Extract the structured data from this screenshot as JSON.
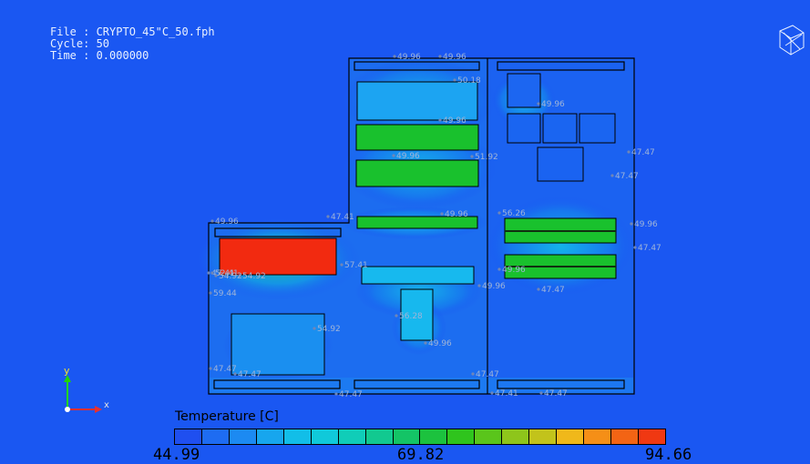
{
  "info": {
    "file_line": "File : CRYPTO_45\"C_50.fph",
    "cycle_line": "Cycle: 50",
    "time_line": "Time : 0.000000"
  },
  "legend": {
    "title": "Temperature [C]",
    "min": "44.99",
    "mid": "69.82",
    "max": "94.66",
    "colors": [
      "#1f4ff0",
      "#1e6cf2",
      "#1c8af2",
      "#17a6ee",
      "#12bee8",
      "#10c9da",
      "#10cdb8",
      "#12c990",
      "#14c466",
      "#1cc23e",
      "#2fc41d",
      "#5ac51b",
      "#8ec51b",
      "#c2c31b",
      "#f0b81a",
      "#f58f17",
      "#f36414",
      "#f03812"
    ]
  },
  "axes": {
    "y": "y",
    "x": "x"
  },
  "probes": [
    {
      "t": "49.96"
    },
    {
      "t": "49.96"
    },
    {
      "t": "50.18"
    },
    {
      "t": "49.96"
    },
    {
      "t": "49.96"
    },
    {
      "t": "51.92"
    },
    {
      "t": "47.47"
    },
    {
      "t": "47.47"
    },
    {
      "t": "47.47"
    },
    {
      "t": "49.96"
    },
    {
      "t": "47.47"
    },
    {
      "t": "49.96"
    },
    {
      "t": "56.26"
    },
    {
      "t": "49.96"
    },
    {
      "t": "57.41"
    },
    {
      "t": "47.41"
    },
    {
      "t": "54.92"
    },
    {
      "t": "49.96"
    },
    {
      "t": "47.47"
    },
    {
      "t": "49.96"
    },
    {
      "t": "47.47"
    },
    {
      "t": "59.44"
    },
    {
      "t": "56.28"
    },
    {
      "t": "49.96"
    },
    {
      "t": "54.92"
    },
    {
      "t": "47.47"
    },
    {
      "t": "47.47"
    },
    {
      "t": "47.47"
    },
    {
      "t": "47.41"
    },
    {
      "t": "47.41"
    },
    {
      "t": "52.41"
    },
    {
      "t": "54.92"
    },
    {
      "t": "49.96"
    }
  ]
}
